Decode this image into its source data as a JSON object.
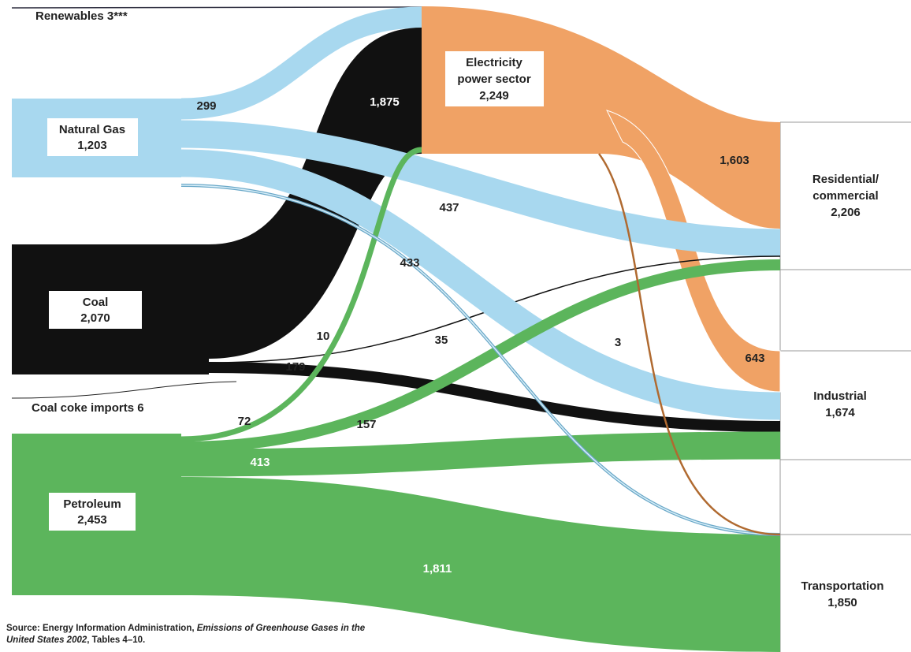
{
  "nodes": [
    {
      "name_lines": [
        "Renewables 3***"
      ]
    },
    {
      "name_lines": [
        "Natural Gas"
      ],
      "value": "1,203"
    },
    {
      "name_lines": [
        "Coal"
      ],
      "value": "2,070"
    },
    {
      "name_lines": [
        "Coal coke imports 6"
      ]
    },
    {
      "name_lines": [
        "Petroleum"
      ],
      "value": "2,453"
    },
    {
      "name_lines": [
        "Electricity",
        "power sector"
      ],
      "value": "2,249"
    },
    {
      "name_lines": [
        "Residential/",
        "commercial"
      ],
      "value": "2,206"
    },
    {
      "name_lines": [
        "Industrial"
      ],
      "value": "1,674"
    },
    {
      "name_lines": [
        "Transportation"
      ],
      "value": "1,850"
    }
  ],
  "flow_labels": [
    "299",
    "1,875",
    "437",
    "433",
    "35",
    "10",
    "179",
    "72",
    "157",
    "413",
    "1,811",
    "1,603",
    "643",
    "3"
  ],
  "source": {
    "prefix": "Source:  Energy Information Administration, ",
    "title": "Emissions of Greenhouse Gases in the United States 2002",
    "suffix": ", Tables 4–10."
  }
}
